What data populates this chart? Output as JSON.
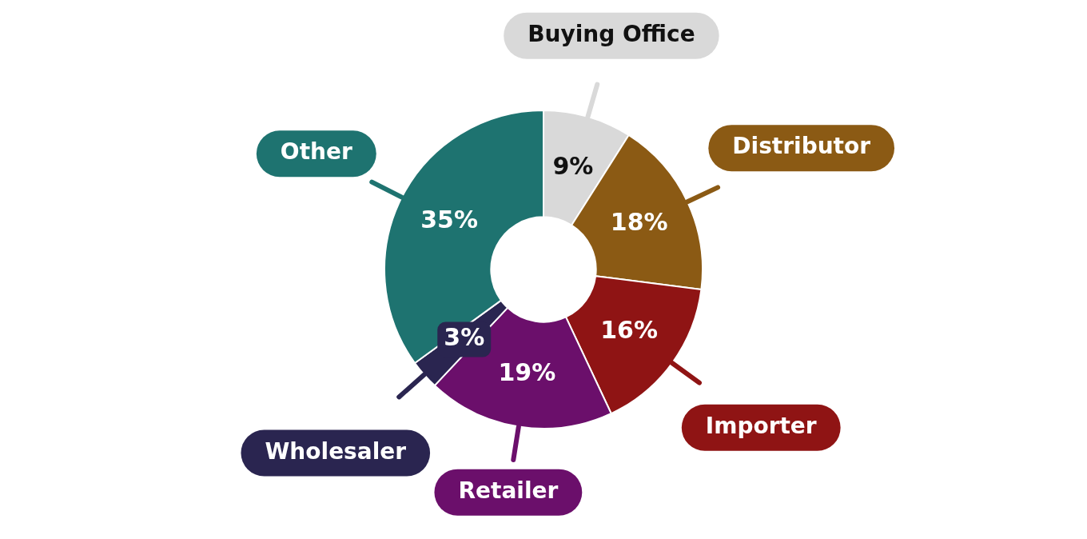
{
  "chart_data": {
    "type": "donut",
    "categories": [
      "Buying Office",
      "Distributor",
      "Importer",
      "Retailer",
      "Wholesaler",
      "Other"
    ],
    "values": [
      9,
      18,
      16,
      19,
      3,
      35
    ],
    "value_labels": [
      "9%",
      "18%",
      "16%",
      "19%",
      "3%",
      "35%"
    ],
    "colors": [
      "#d9d9d9",
      "#8b5a14",
      "#8f1414",
      "#6b0f6b",
      "#2a2550",
      "#1e7370"
    ],
    "legend": false
  }
}
